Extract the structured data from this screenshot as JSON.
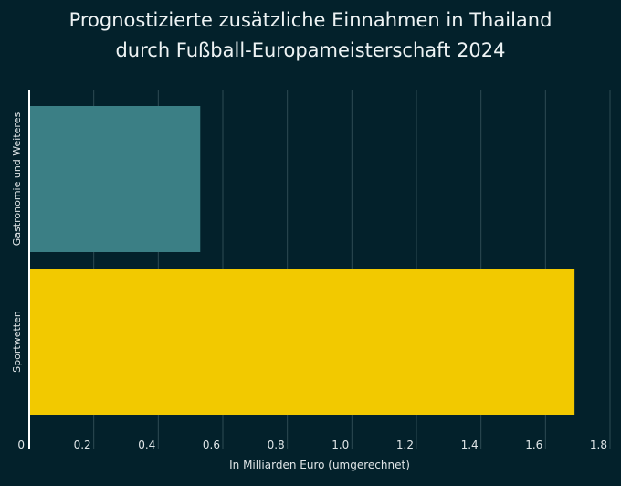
{
  "chart_data": {
    "type": "bar",
    "orientation": "horizontal",
    "title_lines": [
      "Prognostizierte zusätzliche Einnahmen in Thailand",
      "durch Fußball-Europameisterschaft 2024"
    ],
    "categories": [
      "Gastronomie und Weiteres",
      "Sportwetten"
    ],
    "values": [
      0.53,
      1.69
    ],
    "colors": [
      "#3b7f85",
      "#f2c900"
    ],
    "xlabel": "In Milliarden Euro (umgerechnet)",
    "ylabel": "",
    "xlim": [
      0,
      1.8
    ],
    "xticks": [
      "0",
      "0.2",
      "0.4",
      "0.6",
      "0.8",
      "1.0",
      "1.2",
      "1.4",
      "1.6",
      "1.8"
    ],
    "grid": true,
    "background": "#03212b"
  }
}
